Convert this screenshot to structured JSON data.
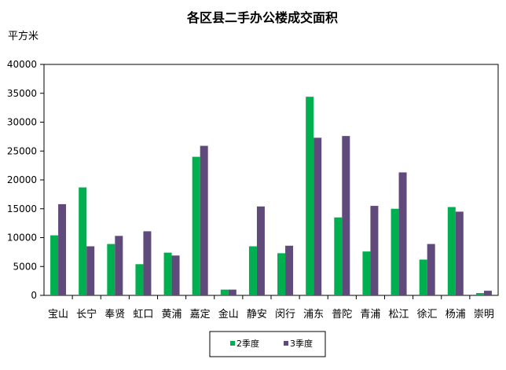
{
  "chart_data": {
    "type": "bar",
    "title": "各区县二手办公楼成交面积",
    "ylabel": "平方米",
    "xlabel": "",
    "ylim": [
      0,
      40000
    ],
    "yticks": [
      0,
      5000,
      10000,
      15000,
      20000,
      25000,
      30000,
      35000,
      40000
    ],
    "grid": false,
    "legend_position": "bottom",
    "categories": [
      "宝山",
      "长宁",
      "奉贤",
      "虹口",
      "黄浦",
      "嘉定",
      "金山",
      "静安",
      "闵行",
      "浦东",
      "普陀",
      "青浦",
      "松江",
      "徐汇",
      "杨浦",
      "崇明"
    ],
    "series": [
      {
        "name": "2季度",
        "color": "#00b050",
        "values": [
          10400,
          18700,
          8900,
          5400,
          7400,
          24000,
          1000,
          8500,
          7300,
          34400,
          13500,
          7600,
          15000,
          6200,
          15300,
          400
        ]
      },
      {
        "name": "3季度",
        "color": "#604a7b",
        "values": [
          15800,
          8500,
          10300,
          11100,
          6900,
          25900,
          1000,
          15400,
          8600,
          27300,
          27600,
          15500,
          21300,
          8900,
          14500,
          800
        ]
      }
    ]
  }
}
